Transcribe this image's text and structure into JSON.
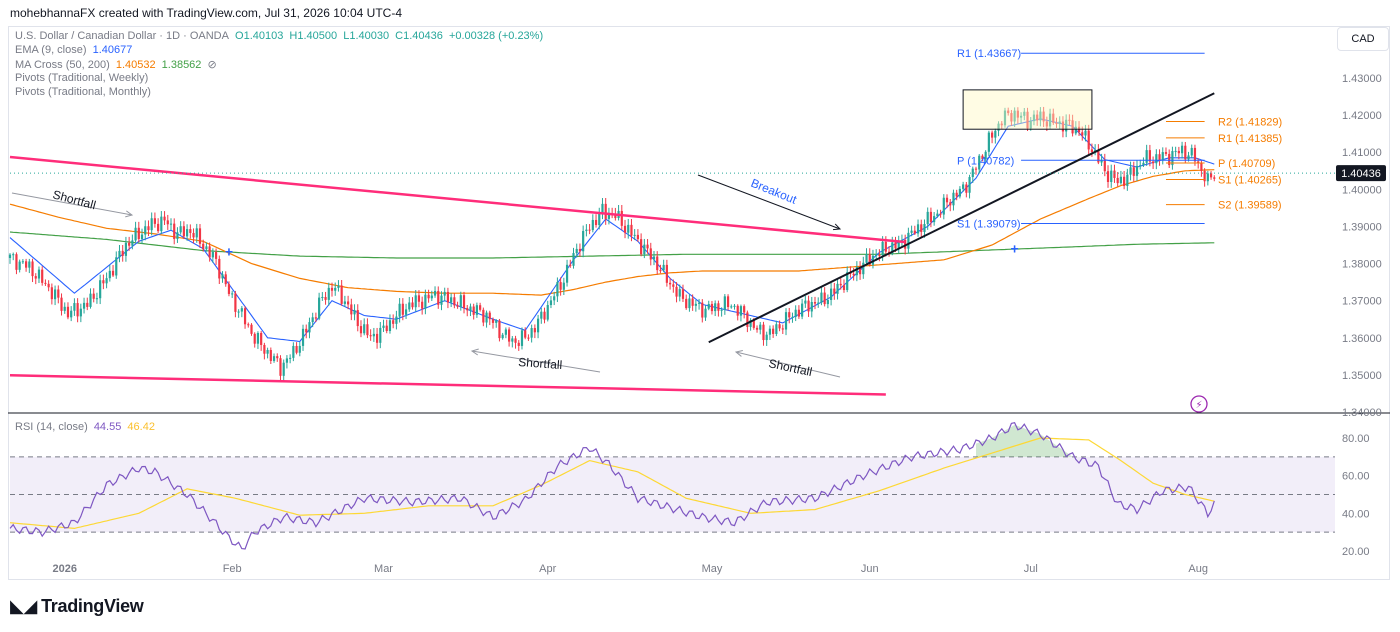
{
  "header": {
    "credit": "mohebhannaFX created with TradingView.com, Jul 31, 2026 10:04 UTC-4"
  },
  "legend": {
    "symbol": "U.S. Dollar / Canadian Dollar · 1D · OANDA",
    "open": "O1.40103",
    "high": "H1.40500",
    "low": "L1.40030",
    "close": "C1.40436",
    "change": "+0.00328 (+0.23%)",
    "ema_label": "EMA (9, close)",
    "ema_value": "1.40677",
    "ma_label": "MA Cross (50, 200)",
    "ma_fast": "1.40532",
    "ma_slow": "1.38562",
    "ma_icon": "hidden-eye-icon",
    "pivots_weekly": "Pivots (Traditional, Weekly)",
    "pivots_monthly": "Pivots (Traditional, Monthly)",
    "rsi_label": "RSI (14, close)",
    "rsi_value": "44.55",
    "rsi_ma": "46.42"
  },
  "currency_button": "CAD",
  "logo_text": "TradingView",
  "colors": {
    "up": "#26a69a",
    "down": "#f23645",
    "ema": "#2962ff",
    "ma_fast": "#f57c00",
    "ma_slow": "#43a047",
    "trend": "#ff2d7a",
    "uptrend": "#131722",
    "rsi": "#7e57c2",
    "rsi_ma": "#fdd835",
    "monthly_pivot": "#2962ff",
    "weekly_pivot": "#f57c00"
  },
  "chart_data": [
    {
      "type": "candlestick",
      "title": "U.S. Dollar / Canadian Dollar · 1D · OANDA",
      "x_ticks": [
        "2026",
        "Feb",
        "Mar",
        "Apr",
        "May",
        "Jun",
        "Jul",
        "Aug"
      ],
      "y_ticks": [
        "1.43000",
        "1.42000",
        "1.41000",
        "1.40000",
        "1.39000",
        "1.38000",
        "1.37000",
        "1.36000",
        "1.35000",
        "1.34000"
      ],
      "ylim": [
        1.3392,
        1.4425
      ],
      "last_price": "1.40436",
      "last_close": 1.40436,
      "close_path": [
        [
          0,
          1.3815
        ],
        [
          6,
          1.379
        ],
        [
          12,
          1.3735
        ],
        [
          18,
          1.3665
        ],
        [
          24,
          1.369
        ],
        [
          30,
          1.376
        ],
        [
          36,
          1.385
        ],
        [
          40,
          1.388
        ],
        [
          44,
          1.3905
        ],
        [
          48,
          1.3915
        ],
        [
          52,
          1.388
        ],
        [
          56,
          1.389
        ],
        [
          60,
          1.385
        ],
        [
          64,
          1.3805
        ],
        [
          68,
          1.372
        ],
        [
          72,
          1.366
        ],
        [
          76,
          1.36
        ],
        [
          80,
          1.356
        ],
        [
          84,
          1.352
        ],
        [
          88,
          1.356
        ],
        [
          92,
          1.362
        ],
        [
          96,
          1.369
        ],
        [
          100,
          1.374
        ],
        [
          104,
          1.37
        ],
        [
          108,
          1.364
        ],
        [
          112,
          1.36
        ],
        [
          116,
          1.362
        ],
        [
          120,
          1.366
        ],
        [
          124,
          1.369
        ],
        [
          128,
          1.37
        ],
        [
          132,
          1.3715
        ],
        [
          136,
          1.3705
        ],
        [
          140,
          1.369
        ],
        [
          144,
          1.3675
        ],
        [
          148,
          1.366
        ],
        [
          152,
          1.362
        ],
        [
          156,
          1.359
        ],
        [
          160,
          1.36
        ],
        [
          164,
          1.364
        ],
        [
          168,
          1.37
        ],
        [
          172,
          1.376
        ],
        [
          176,
          1.384
        ],
        [
          180,
          1.39
        ],
        [
          184,
          1.394
        ],
        [
          188,
          1.393
        ],
        [
          192,
          1.389
        ],
        [
          196,
          1.385
        ],
        [
          200,
          1.381
        ],
        [
          204,
          1.376
        ],
        [
          208,
          1.371
        ],
        [
          212,
          1.369
        ],
        [
          216,
          1.3675
        ],
        [
          220,
          1.3685
        ],
        [
          224,
          1.369
        ],
        [
          228,
          1.366
        ],
        [
          232,
          1.362
        ],
        [
          236,
          1.361
        ],
        [
          240,
          1.364
        ],
        [
          244,
          1.367
        ],
        [
          248,
          1.369
        ],
        [
          252,
          1.37
        ],
        [
          256,
          1.3725
        ],
        [
          260,
          1.376
        ],
        [
          264,
          1.379
        ],
        [
          268,
          1.382
        ],
        [
          272,
          1.384
        ],
        [
          276,
          1.385
        ],
        [
          280,
          1.388
        ],
        [
          284,
          1.391
        ],
        [
          288,
          1.3935
        ],
        [
          292,
          1.3975
        ],
        [
          296,
          1.4
        ],
        [
          300,
          1.406
        ],
        [
          304,
          1.413
        ],
        [
          308,
          1.419
        ],
        [
          312,
          1.4205
        ],
        [
          316,
          1.4185
        ],
        [
          320,
          1.4195
        ],
        [
          324,
          1.418
        ],
        [
          328,
          1.4175
        ],
        [
          332,
          1.416
        ],
        [
          336,
          1.411
        ],
        [
          340,
          1.405
        ],
        [
          344,
          1.402
        ],
        [
          348,
          1.404
        ],
        [
          352,
          1.408
        ],
        [
          356,
          1.4085
        ],
        [
          360,
          1.409
        ],
        [
          364,
          1.4105
        ],
        [
          368,
          1.4085
        ],
        [
          372,
          1.402
        ],
        [
          374,
          1.4044
        ]
      ],
      "ema_path": [
        [
          0,
          1.387
        ],
        [
          20,
          1.372
        ],
        [
          40,
          1.386
        ],
        [
          50,
          1.389
        ],
        [
          60,
          1.384
        ],
        [
          70,
          1.372
        ],
        [
          80,
          1.36
        ],
        [
          90,
          1.359
        ],
        [
          100,
          1.37
        ],
        [
          110,
          1.366
        ],
        [
          120,
          1.365
        ],
        [
          135,
          1.37
        ],
        [
          150,
          1.365
        ],
        [
          160,
          1.362
        ],
        [
          175,
          1.381
        ],
        [
          185,
          1.392
        ],
        [
          195,
          1.386
        ],
        [
          205,
          1.376
        ],
        [
          215,
          1.369
        ],
        [
          230,
          1.366
        ],
        [
          240,
          1.364
        ],
        [
          255,
          1.371
        ],
        [
          270,
          1.383
        ],
        [
          285,
          1.39
        ],
        [
          300,
          1.403
        ],
        [
          310,
          1.417
        ],
        [
          320,
          1.419
        ],
        [
          330,
          1.417
        ],
        [
          340,
          1.408
        ],
        [
          350,
          1.406
        ],
        [
          360,
          1.4085
        ],
        [
          368,
          1.4085
        ],
        [
          374,
          1.4068
        ]
      ],
      "ma_fast_path": [
        [
          0,
          1.396
        ],
        [
          15,
          1.3925
        ],
        [
          30,
          1.3895
        ],
        [
          45,
          1.388
        ],
        [
          60,
          1.386
        ],
        [
          75,
          1.38
        ],
        [
          90,
          1.376
        ],
        [
          105,
          1.3735
        ],
        [
          120,
          1.3725
        ],
        [
          135,
          1.372
        ],
        [
          150,
          1.372
        ],
        [
          165,
          1.3715
        ],
        [
          175,
          1.373
        ],
        [
          185,
          1.375
        ],
        [
          195,
          1.3765
        ],
        [
          205,
          1.3775
        ],
        [
          215,
          1.378
        ],
        [
          230,
          1.378
        ],
        [
          245,
          1.378
        ],
        [
          260,
          1.379
        ],
        [
          275,
          1.38
        ],
        [
          290,
          1.381
        ],
        [
          305,
          1.385
        ],
        [
          320,
          1.392
        ],
        [
          335,
          1.3975
        ],
        [
          345,
          1.401
        ],
        [
          355,
          1.4035
        ],
        [
          365,
          1.405
        ],
        [
          374,
          1.4053
        ]
      ],
      "ma_slow_path": [
        [
          0,
          1.3885
        ],
        [
          30,
          1.3865
        ],
        [
          60,
          1.3835
        ],
        [
          90,
          1.382
        ],
        [
          120,
          1.3815
        ],
        [
          150,
          1.3815
        ],
        [
          180,
          1.382
        ],
        [
          210,
          1.3825
        ],
        [
          240,
          1.3825
        ],
        [
          270,
          1.3825
        ],
        [
          300,
          1.3835
        ],
        [
          330,
          1.3845
        ],
        [
          350,
          1.3852
        ],
        [
          374,
          1.3856
        ]
      ],
      "monthly_pivots": [
        {
          "label": "R1 (1.43667)",
          "value": 1.43667
        },
        {
          "label": "P (1.40782)",
          "value": 1.40782
        },
        {
          "label": "S1 (1.39079)",
          "value": 1.39079
        }
      ],
      "weekly_pivots": [
        {
          "label": "R2 (1.41829)",
          "value": 1.41829
        },
        {
          "label": "R1 (1.41385)",
          "value": 1.41385
        },
        {
          "label": "P (1.40709)",
          "value": 1.40709
        },
        {
          "label": "S1 (1.40265)",
          "value": 1.40265
        },
        {
          "label": "S2 (1.39589)",
          "value": 1.39589
        }
      ],
      "annotations": [
        {
          "text": "Shortfall",
          "bar": 16,
          "price": 1.3995,
          "angle": 15
        },
        {
          "text": "Breakout",
          "bar": 245,
          "price": 1.4,
          "angle": 20
        },
        {
          "text": "Shortfall",
          "bar": 129,
          "price": 1.3575,
          "angle": 5
        },
        {
          "text": "Shortfall",
          "bar": 245,
          "price": 1.357,
          "angle": 12
        }
      ],
      "trendlines": [
        {
          "name": "channel-upper",
          "from": [
            0,
            1.4087
          ],
          "to": [
            278,
            1.3858
          ]
        },
        {
          "name": "channel-lower",
          "from": [
            0,
            1.3499
          ],
          "to": [
            272,
            1.3447
          ]
        },
        {
          "name": "uptrend",
          "from": [
            217,
            1.3588
          ],
          "to": [
            374,
            1.4259
          ]
        }
      ]
    },
    {
      "type": "line",
      "title": "RSI (14, close)",
      "y_ticks": [
        "80.00",
        "60.00",
        "40.00",
        "20.00"
      ],
      "ylim": [
        15,
        87
      ],
      "levels": [
        70,
        50,
        30
      ],
      "series": [
        {
          "name": "RSI (14, close)",
          "points": [
            [
              0,
              32
            ],
            [
              10,
              30
            ],
            [
              20,
              35
            ],
            [
              30,
              55
            ],
            [
              40,
              64
            ],
            [
              45,
              62
            ],
            [
              55,
              50
            ],
            [
              62,
              38
            ],
            [
              68,
              27
            ],
            [
              72,
              21
            ],
            [
              76,
              30
            ],
            [
              85,
              38
            ],
            [
              95,
              35
            ],
            [
              110,
              48
            ],
            [
              125,
              46
            ],
            [
              140,
              48
            ],
            [
              150,
              38
            ],
            [
              160,
              47
            ],
            [
              170,
              65
            ],
            [
              180,
              75
            ],
            [
              186,
              66
            ],
            [
              195,
              48
            ],
            [
              205,
              43
            ],
            [
              215,
              38
            ],
            [
              225,
              35
            ],
            [
              235,
              46
            ],
            [
              250,
              48
            ],
            [
              265,
              60
            ],
            [
              280,
              70
            ],
            [
              295,
              74
            ],
            [
              305,
              80
            ],
            [
              312,
              87
            ],
            [
              320,
              82
            ],
            [
              330,
              70
            ],
            [
              338,
              65
            ],
            [
              344,
              45
            ],
            [
              350,
              42
            ],
            [
              358,
              52
            ],
            [
              366,
              54
            ],
            [
              372,
              40
            ],
            [
              374,
              44.55
            ]
          ]
        },
        {
          "name": "RSI MA",
          "points": [
            [
              0,
              35
            ],
            [
              20,
              32
            ],
            [
              40,
              40
            ],
            [
              55,
              53
            ],
            [
              70,
              48
            ],
            [
              90,
              39
            ],
            [
              110,
              40
            ],
            [
              130,
              44
            ],
            [
              150,
              44
            ],
            [
              165,
              55
            ],
            [
              180,
              68
            ],
            [
              195,
              62
            ],
            [
              210,
              48
            ],
            [
              230,
              40
            ],
            [
              250,
              42
            ],
            [
              270,
              52
            ],
            [
              290,
              64
            ],
            [
              305,
              72
            ],
            [
              320,
              80
            ],
            [
              335,
              79
            ],
            [
              345,
              68
            ],
            [
              355,
              56
            ],
            [
              365,
              50
            ],
            [
              374,
              46.42
            ]
          ]
        }
      ]
    }
  ]
}
